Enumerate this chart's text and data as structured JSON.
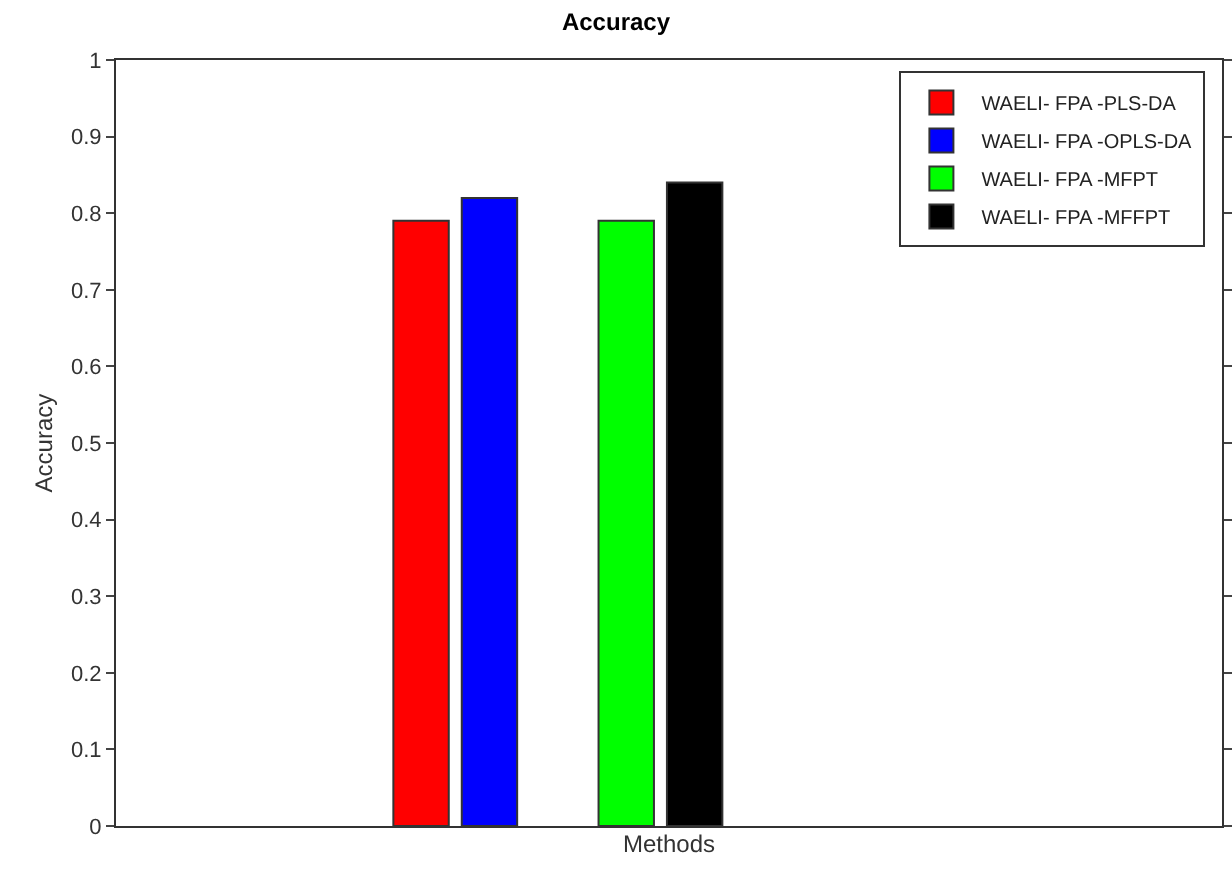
{
  "chart_data": {
    "type": "bar",
    "title": "Accuracy",
    "xlabel": "Methods",
    "ylabel": "Accuracy",
    "categories": [
      null
    ],
    "series": [
      {
        "name": "WAELI- FPA -PLS-DA",
        "color": "#ff0000",
        "values": [
          0.79
        ]
      },
      {
        "name": "WAELI- FPA -OPLS-DA",
        "color": "#0000ff",
        "values": [
          0.82
        ]
      },
      {
        "values": [
          null
        ]
      },
      {
        "name": "WAELI- FPA -MFPT",
        "color": "#00ff00",
        "values": [
          0.79
        ]
      },
      {
        "name": "WAELI- FPA -MFFPT",
        "color": "#000000",
        "values": [
          0.84
        ]
      }
    ],
    "ylim": [
      0,
      1
    ],
    "yticks": [
      0,
      0.1,
      0.2,
      0.3,
      0.4,
      0.5,
      0.6,
      0.7,
      0.8,
      0.9,
      1
    ],
    "legend": "top right"
  }
}
